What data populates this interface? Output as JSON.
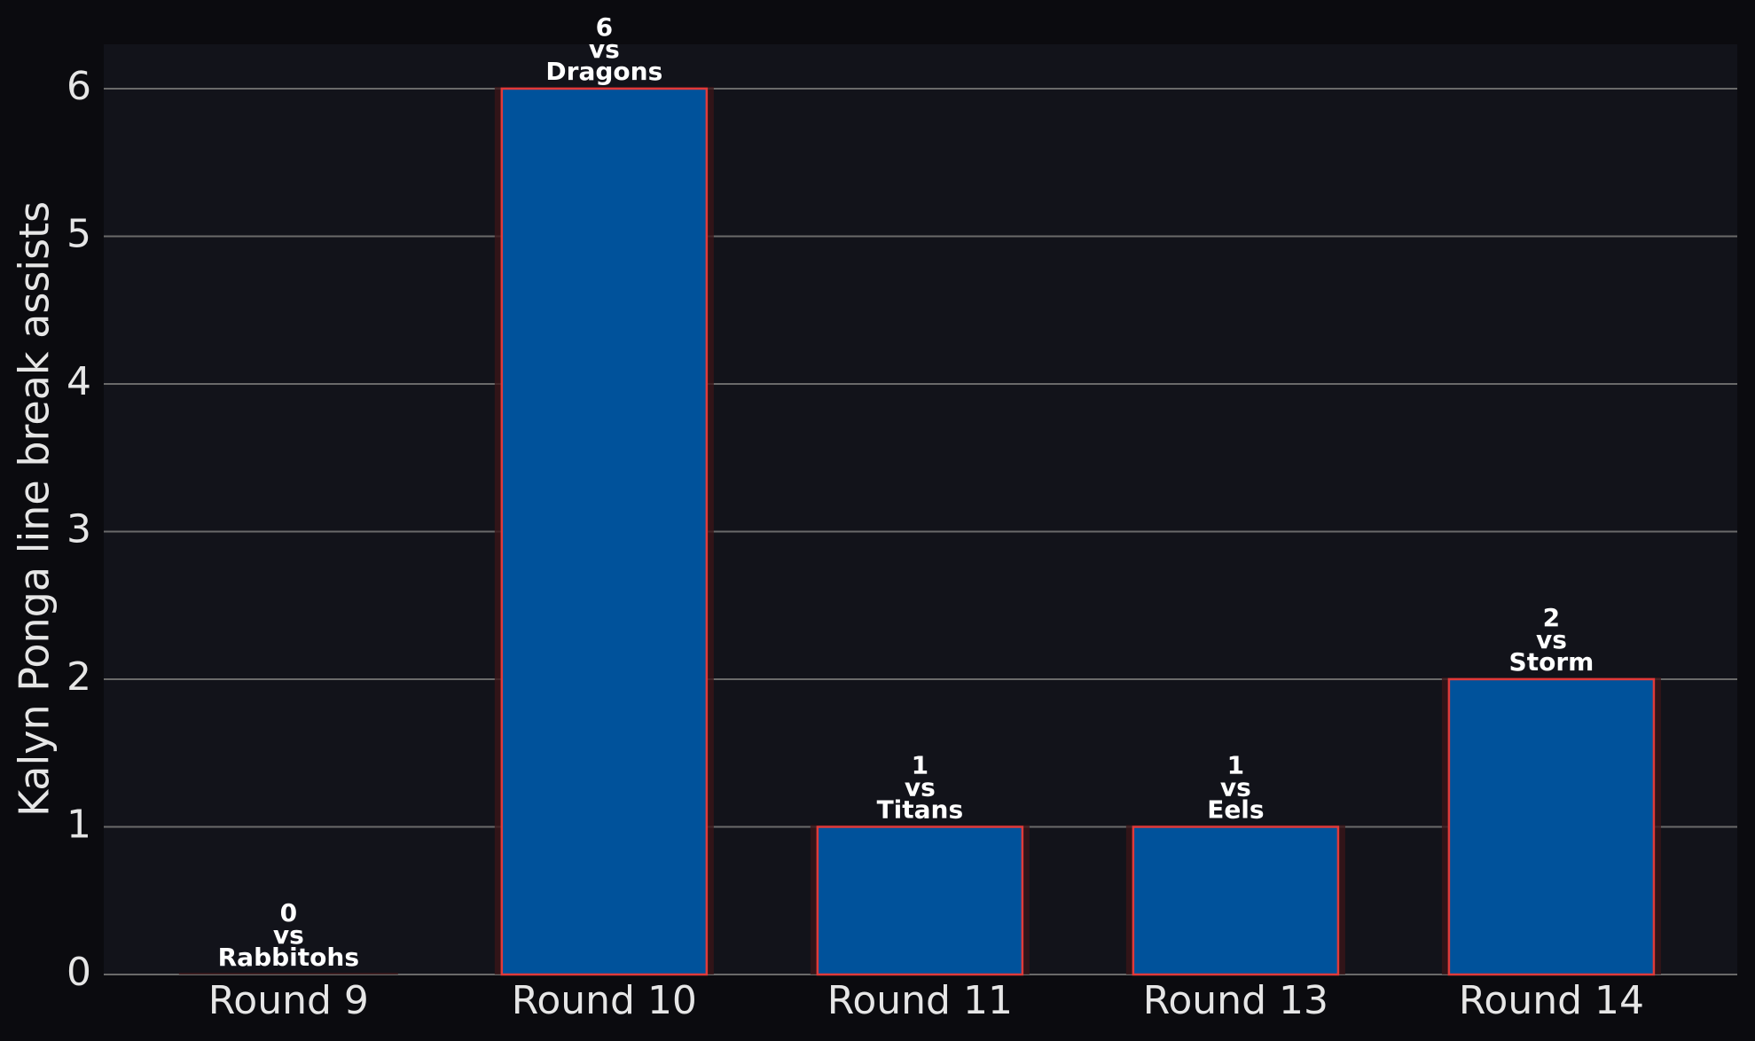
{
  "chart_data": {
    "type": "bar",
    "y_label": "Kalyn Ponga line break assists",
    "categories": [
      "Round 9",
      "Round 10",
      "Round 11",
      "Round 13",
      "Round 14"
    ],
    "values": [
      0,
      6,
      1,
      1,
      2
    ],
    "opponents": [
      "Rabbitohs",
      "Dragons",
      "Titans",
      "Eels",
      "Storm"
    ],
    "label_connector": "vs",
    "color": "#00529b",
    "edge_color": "#e03a3a",
    "ylim": [
      0,
      6.3
    ],
    "yticks": [
      0,
      1,
      2,
      3,
      4,
      5,
      6
    ],
    "grid": true
  }
}
